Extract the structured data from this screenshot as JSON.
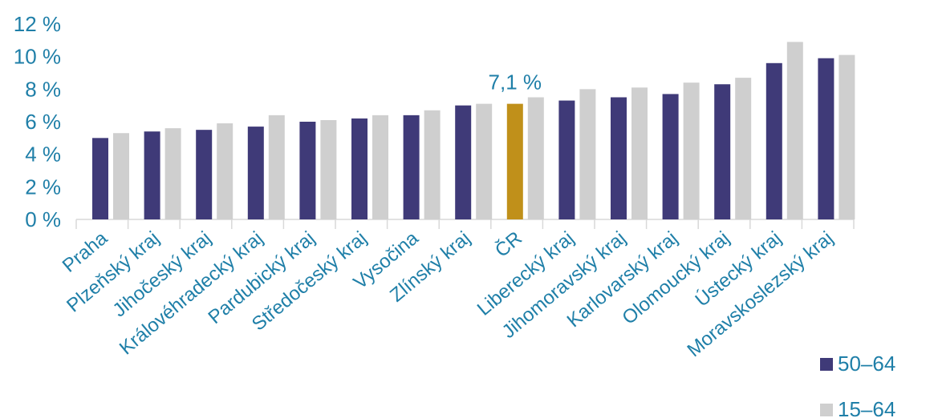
{
  "chart_data": {
    "type": "bar",
    "categories": [
      "Praha",
      "Plzeňský kraj",
      "Jihočeský kraj",
      "Královéhradecký kraj",
      "Pardubický kraj",
      "Středočeský kraj",
      "Vysočina",
      "Zlínský kraj",
      "ČR",
      "Liberecký kraj",
      "Jihomoravský kraj",
      "Karlovarský kraj",
      "Olomoucký kraj",
      "Ústecký kraj",
      "Moravskoslezský kraj"
    ],
    "series": [
      {
        "name": "50–64",
        "color": "#3f3a78",
        "values": [
          5.0,
          5.4,
          5.5,
          5.7,
          6.0,
          6.2,
          6.4,
          7.0,
          7.1,
          7.3,
          7.5,
          7.7,
          8.3,
          9.6,
          9.9
        ]
      },
      {
        "name": "15–64",
        "color": "#cfcfcf",
        "values": [
          5.3,
          5.6,
          5.9,
          6.4,
          6.1,
          6.4,
          6.7,
          7.1,
          7.5,
          8.0,
          8.1,
          8.4,
          8.7,
          10.9,
          10.1
        ]
      }
    ],
    "highlight": {
      "category": "ČR",
      "series": "50–64",
      "color": "#c0901a"
    },
    "annotations": [
      {
        "category": "ČR",
        "text": "7,1 %"
      }
    ],
    "yticks": [
      "0 %",
      "2 %",
      "4 %",
      "6 %",
      "8 %",
      "10 %",
      "12 %"
    ],
    "ylim": [
      0,
      12
    ],
    "title": "",
    "xlabel": "",
    "ylabel": "",
    "grid": false,
    "legend": "bottom-right"
  }
}
